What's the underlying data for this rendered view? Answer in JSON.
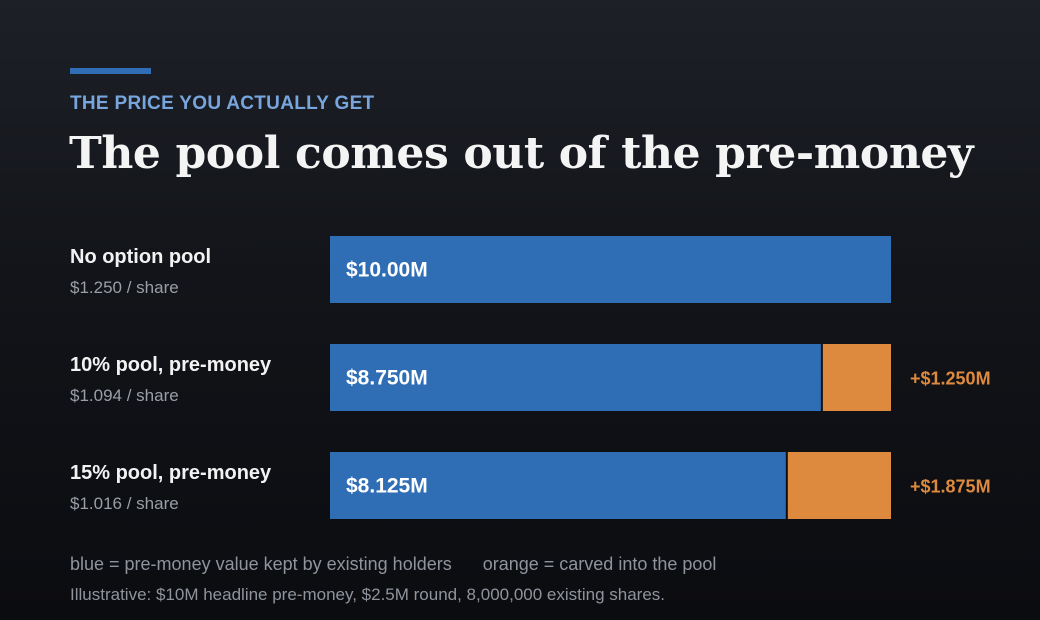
{
  "header": {
    "eyebrow": "THE PRICE YOU ACTUALLY GET",
    "title": "The pool comes out of the pre-money"
  },
  "colors": {
    "kept": "#2f6db5",
    "pool": "#de8a3e",
    "accent": "#2f6db5",
    "eyebrow": "#78a6dc"
  },
  "chart_data": {
    "type": "bar",
    "orientation": "horizontal",
    "stacked": true,
    "categories": [
      "No option pool",
      "10% pool, pre-money",
      "15% pool, pre-money"
    ],
    "sublabels": [
      "$1.250 / share",
      "$1.094 / share",
      "$1.016 / share"
    ],
    "series": [
      {
        "key": "kept",
        "values": [
          10.0,
          8.75,
          8.125
        ],
        "labels": [
          "$10.00M",
          "$8.750M",
          "$8.125M"
        ],
        "color": "#2f6db5"
      },
      {
        "key": "pool",
        "values": [
          0,
          1.25,
          1.875
        ],
        "labels": [
          "",
          "+$1.250M",
          "+$1.875M"
        ],
        "color": "#de8a3e"
      }
    ],
    "xlim": [
      0,
      10
    ],
    "grid": false
  },
  "legend": {
    "kept": "blue = pre-money value kept by existing holders",
    "pool": "orange = carved into the pool"
  },
  "footnote": "Illustrative: $10M headline pre-money, $2.5M round, 8,000,000 existing shares."
}
